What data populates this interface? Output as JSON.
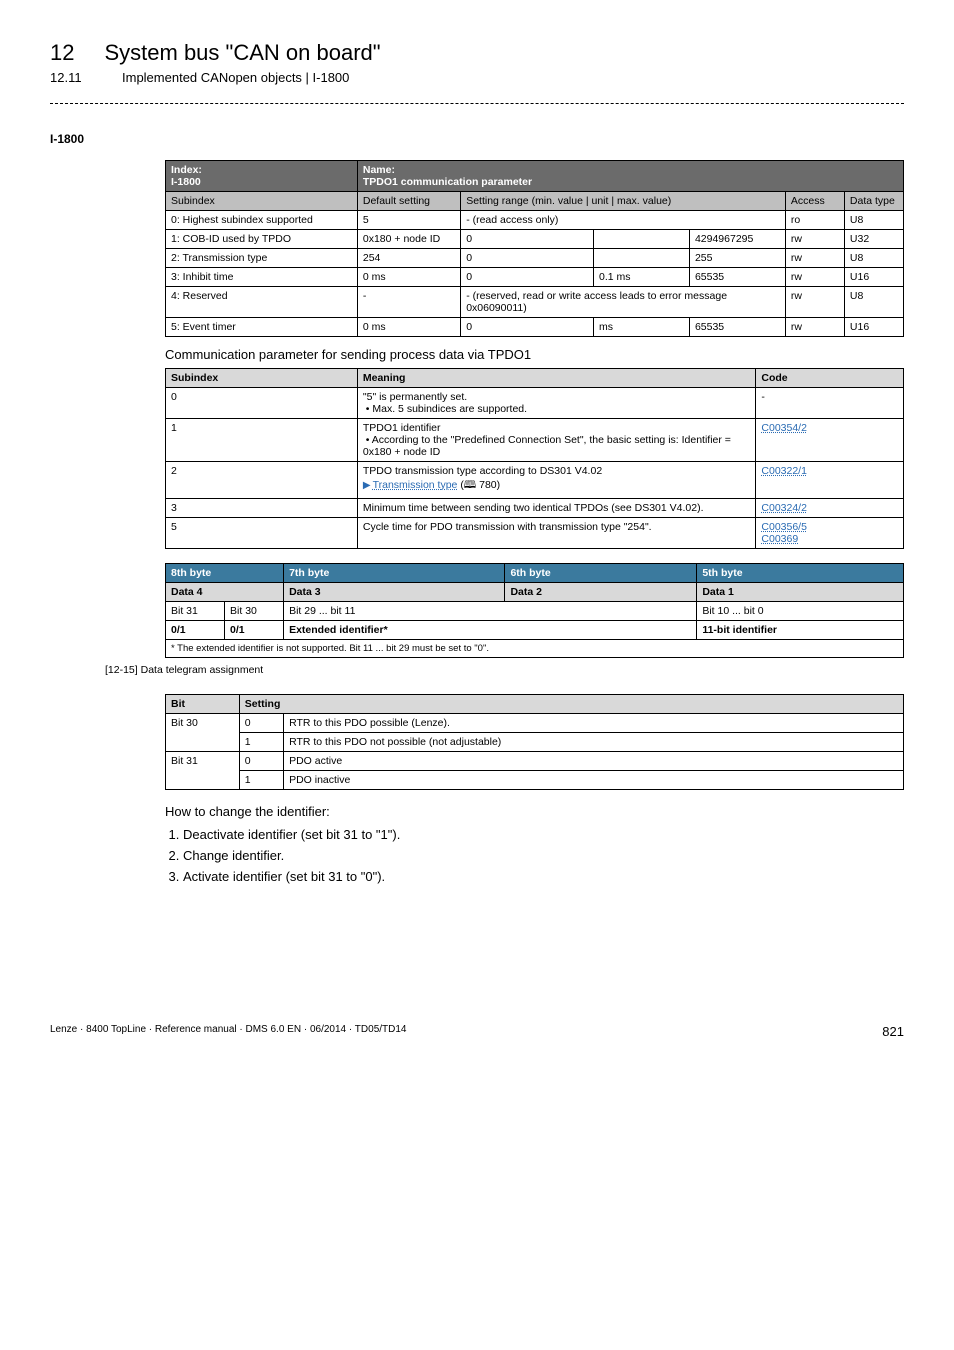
{
  "header": {
    "chapter_num": "12",
    "chapter_title": "System bus \"CAN on board\"",
    "sub_num": "12.11",
    "sub_title": "Implemented CANopen objects | I-1800"
  },
  "anchor": "I-1800",
  "table_spec": {
    "r0": {
      "index_lbl": "Index:",
      "index_val": "I-1800",
      "name_lbl": "Name:",
      "name_val": "TPDO1 communication parameter"
    },
    "head": {
      "subidx": "Subindex",
      "def": "Default setting",
      "range": "Setting range (min. value | unit | max. value)",
      "access": "Access",
      "dtype": "Data type"
    },
    "rows": [
      {
        "subidx": "0: Highest subindex supported",
        "def": "5",
        "min": "- (read access only)",
        "unit": "",
        "max": "",
        "access": "ro",
        "dtype": "U8",
        "merge3": true
      },
      {
        "subidx": "1: COB-ID used by TPDO",
        "def": "0x180 + node ID",
        "min": "0",
        "unit": "",
        "max": "4294967295",
        "access": "rw",
        "dtype": "U32"
      },
      {
        "subidx": "2: Transmission type",
        "def": "254",
        "min": "0",
        "unit": "",
        "max": "255",
        "access": "rw",
        "dtype": "U8"
      },
      {
        "subidx": "3: Inhibit time",
        "def": "0 ms",
        "min": "0",
        "unit": "0.1 ms",
        "max": "65535",
        "access": "rw",
        "dtype": "U16"
      },
      {
        "subidx": "4: Reserved",
        "def": "-",
        "min": "- (reserved, read or write access leads to error message 0x06090011)",
        "unit": "",
        "max": "",
        "access": "rw",
        "dtype": "U8",
        "merge3": true
      },
      {
        "subidx": "5: Event timer",
        "def": "0 ms",
        "min": "0",
        "unit": "ms",
        "max": "65535",
        "access": "rw",
        "dtype": "U16"
      }
    ]
  },
  "caption1": "Communication parameter for sending process data via TPDO1",
  "table_meaning": {
    "head": {
      "sub": "Subindex",
      "mean": "Meaning",
      "code": "Code"
    },
    "rows": [
      {
        "sub": "0",
        "mean_l1": "\"5\" is permanently set.",
        "mean_b": "Max. 5 subindices are supported.",
        "code": "-"
      },
      {
        "sub": "1",
        "mean_l1": "TPDO1 identifier",
        "mean_b": "According to the \"Predefined Connection Set\", the basic setting is: Identifier = 0x180 + node ID",
        "code": "C00354/2"
      },
      {
        "sub": "2",
        "mean_l1": "TPDO transmission type according to DS301 V4.02",
        "link_txt": "Transmission type",
        "link_page": "(🕮 780)",
        "code": "C00322/1"
      },
      {
        "sub": "3",
        "mean_l1": "Minimum time between sending two identical TPDOs (see DS301 V4.02).",
        "code": "C00324/2"
      },
      {
        "sub": "5",
        "mean_l1": "Cycle time for PDO transmission with transmission type \"254\".",
        "code1": "C00356/5",
        "code2": "C00369"
      }
    ]
  },
  "table_byte": {
    "head": {
      "b8": "8th byte",
      "b7": "7th byte",
      "b6": "6th byte",
      "b5": "5th byte"
    },
    "head2": {
      "d4": "Data 4",
      "d3": "Data 3",
      "d2": "Data 2",
      "d1": "Data 1"
    },
    "row1": {
      "b31": "Bit 31",
      "b30": "Bit 30",
      "mid": "Bit 29 ... bit 11",
      "right": "Bit 10 ... bit 0"
    },
    "row2": {
      "b31": "0/1",
      "b30": "0/1",
      "mid": "Extended identifier*",
      "right": "11-bit identifier"
    },
    "foot": "* The extended identifier is not supported. Bit 11 ... bit 29 must be set to \"0\"."
  },
  "fig_caption": "[12-15] Data telegram assignment",
  "table_bitset": {
    "head": {
      "bit": "Bit",
      "setting": "Setting"
    },
    "rows": [
      {
        "bit": "Bit 30",
        "val": "0",
        "txt": "RTR to this PDO possible (Lenze)."
      },
      {
        "bit": "",
        "val": "1",
        "txt": "RTR to this PDO not possible (not adjustable)"
      },
      {
        "bit": "Bit 31",
        "val": "0",
        "txt": "PDO active"
      },
      {
        "bit": "",
        "val": "1",
        "txt": "PDO inactive"
      }
    ]
  },
  "howto": "How to change the identifier:",
  "steps": [
    "Deactivate identifier (set bit 31 to \"1\").",
    "Change identifier.",
    "Activate identifier (set bit 31 to \"0\")."
  ],
  "footer": {
    "left": "Lenze · 8400 TopLine · Reference manual · DMS 6.0 EN · 06/2014 · TD05/TD14",
    "page": "821"
  }
}
